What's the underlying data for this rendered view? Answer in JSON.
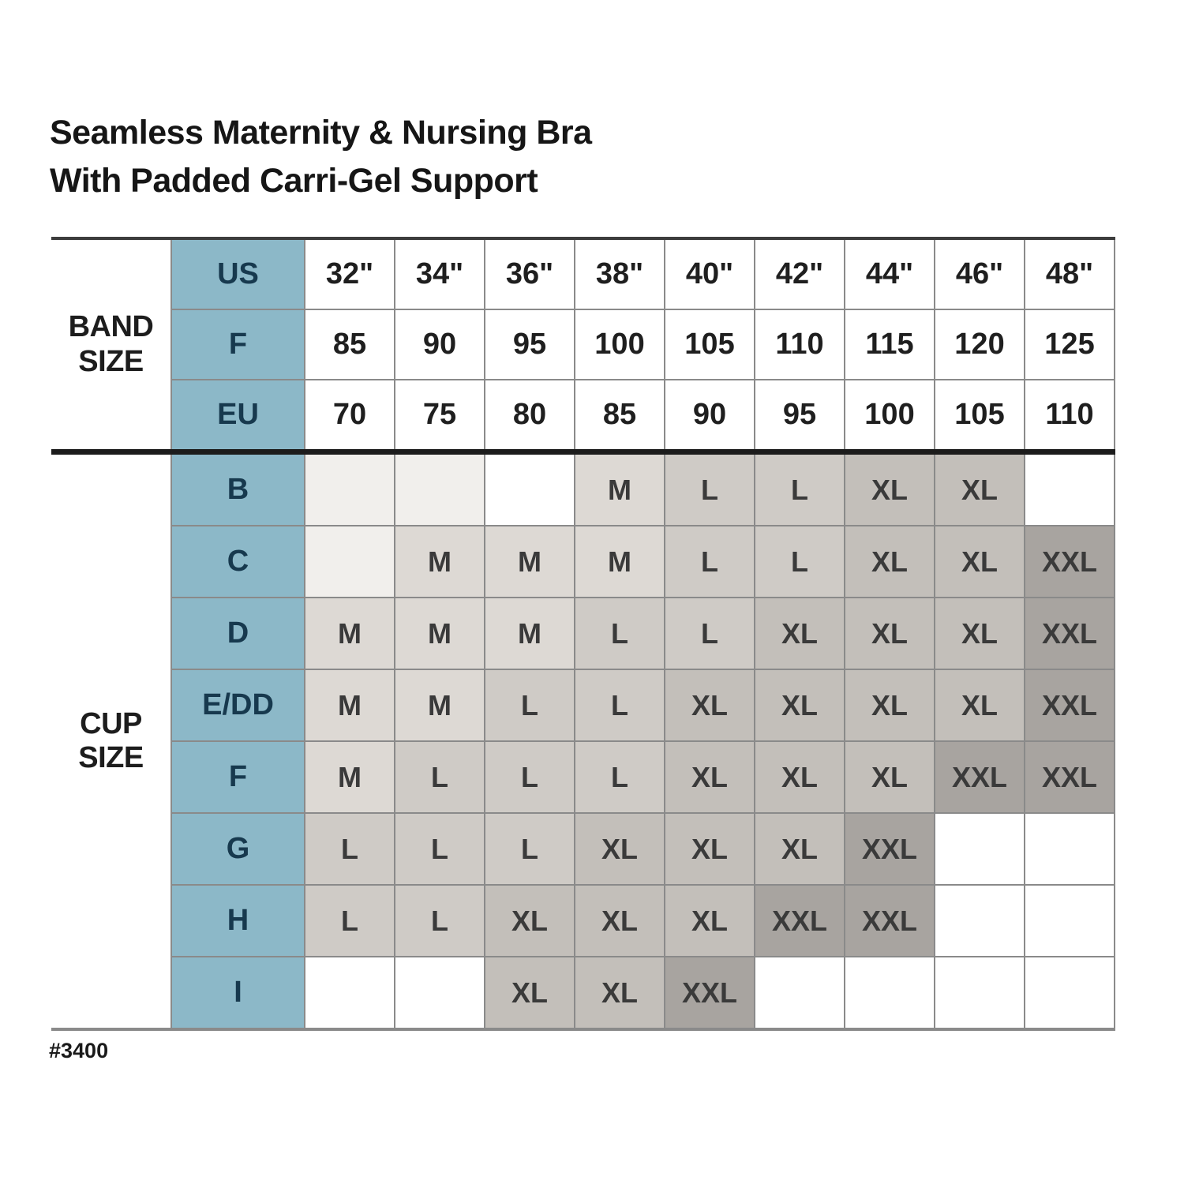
{
  "title": {
    "line1": "Seamless Maternity & Nursing Bra",
    "line2": "With Padded Carri-Gel Support"
  },
  "footnote": "#3400",
  "labels": {
    "band_line1": "BAND",
    "band_line2": "SIZE",
    "cup_line1": "CUP",
    "cup_line2": "SIZE"
  },
  "colors": {
    "header_fill": "#8cb8c8",
    "header_text": "#17394e",
    "grid_line": "#8a8a8a",
    "heavy_divider": "#1c1c1c",
    "shade_m": "#ddd9d4",
    "shade_l": "#cfcbc6",
    "shade_xl": "#c3bfba",
    "shade_xxl": "#a8a4a0",
    "shade_empty": "#f1efec"
  },
  "chart_data": {
    "type": "table",
    "title": "Seamless Maternity & Nursing Bra With Padded Carri-Gel Support",
    "band_section_label": "BAND SIZE",
    "cup_section_label": "CUP SIZE",
    "band_rows": [
      {
        "label": "US",
        "values": [
          "32\"",
          "34\"",
          "36\"",
          "38\"",
          "40\"",
          "42\"",
          "44\"",
          "46\"",
          "48\""
        ]
      },
      {
        "label": "F",
        "values": [
          "85",
          "90",
          "95",
          "100",
          "105",
          "110",
          "115",
          "120",
          "125"
        ]
      },
      {
        "label": "EU",
        "values": [
          "70",
          "75",
          "80",
          "85",
          "90",
          "95",
          "100",
          "105",
          "110"
        ]
      }
    ],
    "cup_rows": [
      {
        "label": "B",
        "cells": [
          [
            "",
            "light"
          ],
          [
            "",
            "light"
          ],
          [
            "",
            "white"
          ],
          [
            "M",
            "m"
          ],
          [
            "L",
            "l"
          ],
          [
            "L",
            "l"
          ],
          [
            "XL",
            "xl"
          ],
          [
            "XL",
            "xl"
          ],
          [
            "",
            "white"
          ]
        ]
      },
      {
        "label": "C",
        "cells": [
          [
            "",
            "light"
          ],
          [
            "M",
            "m"
          ],
          [
            "M",
            "m"
          ],
          [
            "M",
            "m"
          ],
          [
            "L",
            "l"
          ],
          [
            "L",
            "l"
          ],
          [
            "XL",
            "xl"
          ],
          [
            "XL",
            "xl"
          ],
          [
            "XXL",
            "xxl"
          ]
        ]
      },
      {
        "label": "D",
        "cells": [
          [
            "M",
            "m"
          ],
          [
            "M",
            "m"
          ],
          [
            "M",
            "m"
          ],
          [
            "L",
            "l"
          ],
          [
            "L",
            "l"
          ],
          [
            "XL",
            "xl"
          ],
          [
            "XL",
            "xl"
          ],
          [
            "XL",
            "xl"
          ],
          [
            "XXL",
            "xxl"
          ]
        ]
      },
      {
        "label": "E/DD",
        "cells": [
          [
            "M",
            "m"
          ],
          [
            "M",
            "m"
          ],
          [
            "L",
            "l"
          ],
          [
            "L",
            "l"
          ],
          [
            "XL",
            "xl"
          ],
          [
            "XL",
            "xl"
          ],
          [
            "XL",
            "xl"
          ],
          [
            "XL",
            "xl"
          ],
          [
            "XXL",
            "xxl"
          ]
        ]
      },
      {
        "label": "F",
        "cells": [
          [
            "M",
            "m"
          ],
          [
            "L",
            "l"
          ],
          [
            "L",
            "l"
          ],
          [
            "L",
            "l"
          ],
          [
            "XL",
            "xl"
          ],
          [
            "XL",
            "xl"
          ],
          [
            "XL",
            "xl"
          ],
          [
            "XXL",
            "xxl"
          ],
          [
            "XXL",
            "xxl"
          ]
        ]
      },
      {
        "label": "G",
        "cells": [
          [
            "L",
            "l"
          ],
          [
            "L",
            "l"
          ],
          [
            "L",
            "l"
          ],
          [
            "XL",
            "xl"
          ],
          [
            "XL",
            "xl"
          ],
          [
            "XL",
            "xl"
          ],
          [
            "XXL",
            "xxl"
          ],
          [
            "",
            "white"
          ],
          [
            "",
            "white"
          ]
        ]
      },
      {
        "label": "H",
        "cells": [
          [
            "L",
            "l"
          ],
          [
            "L",
            "l"
          ],
          [
            "XL",
            "xl"
          ],
          [
            "XL",
            "xl"
          ],
          [
            "XL",
            "xl"
          ],
          [
            "XXL",
            "xxl"
          ],
          [
            "XXL",
            "xxl"
          ],
          [
            "",
            "white"
          ],
          [
            "",
            "white"
          ]
        ]
      },
      {
        "label": "I",
        "cells": [
          [
            "",
            "white"
          ],
          [
            "",
            "white"
          ],
          [
            "XL",
            "xl"
          ],
          [
            "XL",
            "xl"
          ],
          [
            "XXL",
            "xxl"
          ],
          [
            "",
            "white"
          ],
          [
            "",
            "white"
          ],
          [
            "",
            "white"
          ],
          [
            "",
            "white"
          ]
        ]
      }
    ]
  }
}
